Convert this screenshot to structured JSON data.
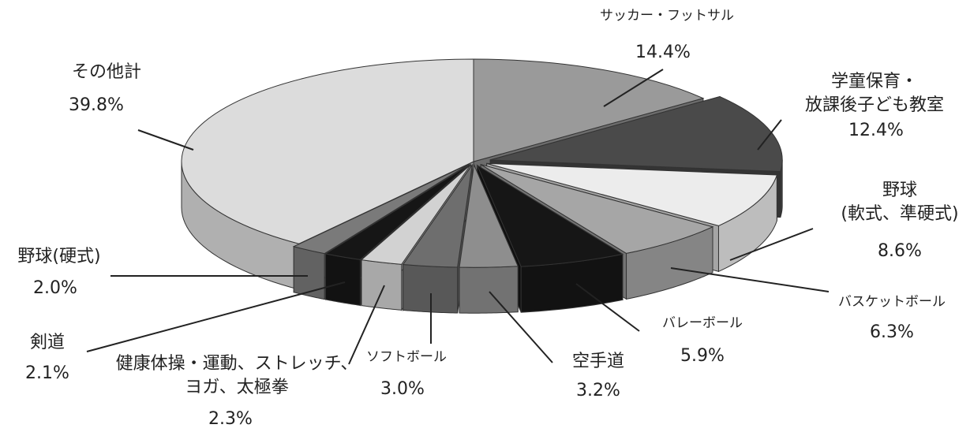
{
  "chart_data": {
    "type": "pie",
    "title": "",
    "slices": [
      {
        "label": "サッカー・フットサル",
        "value": 14.4,
        "value_label": "14.4%",
        "color": "#9a9a9a"
      },
      {
        "label": "学童保育・放課後子ども教室",
        "label_lines": [
          "学童保育・",
          "放課後子ども教室"
        ],
        "value": 12.4,
        "value_label": "12.4%",
        "color": "#4a4a4a"
      },
      {
        "label": "野球(軟式、準硬式)",
        "label_lines": [
          "野球",
          "(軟式、準硬式)"
        ],
        "value": 8.6,
        "value_label": "8.6%",
        "color": "#ececec"
      },
      {
        "label": "バスケットボール",
        "value": 6.3,
        "value_label": "6.3%",
        "color": "#a6a6a6"
      },
      {
        "label": "バレーボール",
        "value": 5.9,
        "value_label": "5.9%",
        "color": "#161616"
      },
      {
        "label": "空手道",
        "value": 3.2,
        "value_label": "3.2%",
        "color": "#8e8e8e"
      },
      {
        "label": "ソフトボール",
        "value": 3.0,
        "value_label": "3.0%",
        "color": "#6e6e6e"
      },
      {
        "label": "健康体操・運動、ストレッチ、ヨガ、太極拳",
        "label_lines": [
          "健康体操・運動、ストレッチ、",
          "ヨガ、太極拳"
        ],
        "value": 2.3,
        "value_label": "2.3%",
        "color": "#d2d2d2"
      },
      {
        "label": "剣道",
        "value": 2.1,
        "value_label": "2.1%",
        "color": "#161616"
      },
      {
        "label": "野球(硬式)",
        "value": 2.0,
        "value_label": "2.0%",
        "color": "#7a7a7a"
      },
      {
        "label": "その他計",
        "value": 39.8,
        "value_label": "39.8%",
        "color": "#dcdcdc"
      }
    ]
  }
}
